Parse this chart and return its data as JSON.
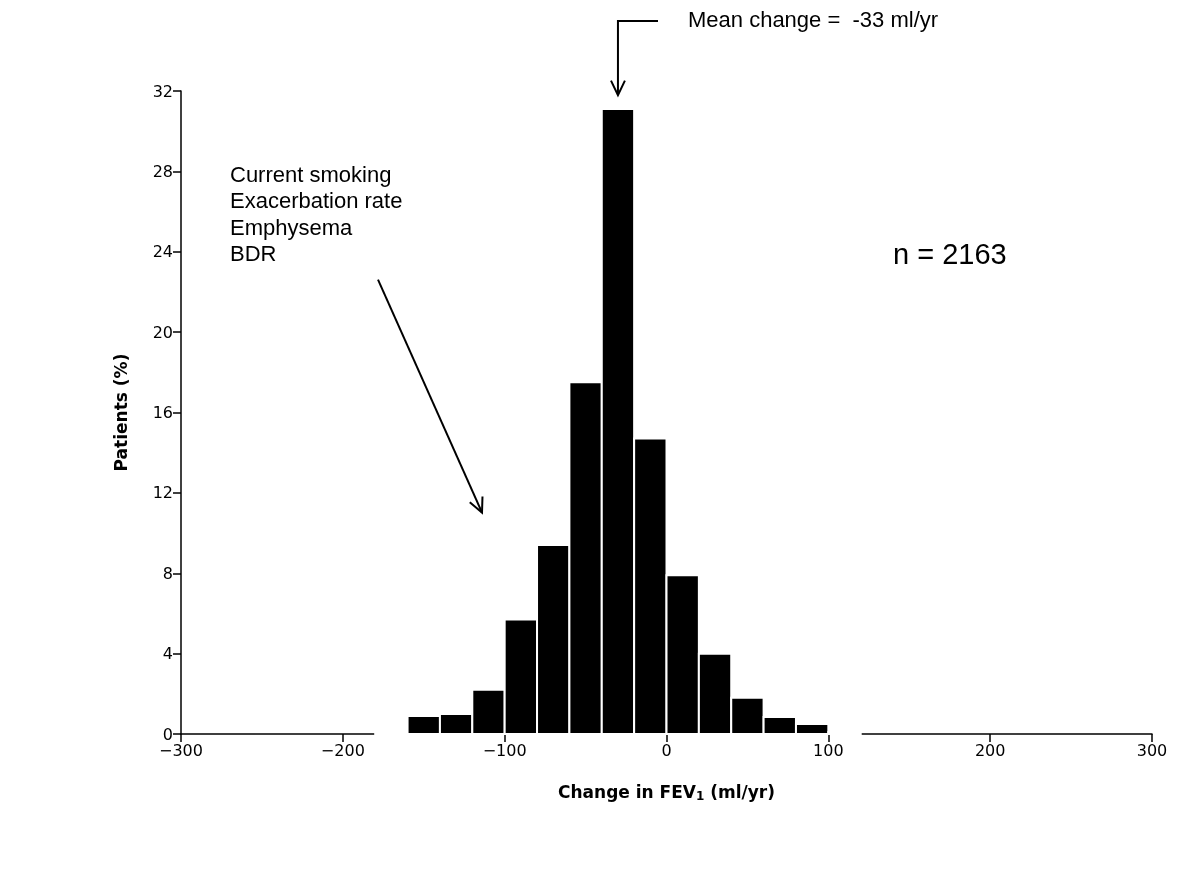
{
  "chart_data": {
    "type": "histogram",
    "bins": [
      -180,
      -160,
      -140,
      -120,
      -100,
      -80,
      -60,
      -40,
      -20,
      0,
      20,
      40,
      60,
      80,
      100,
      120
    ],
    "values": [
      0.1,
      0.9,
      1.0,
      2.2,
      5.7,
      9.4,
      17.5,
      31.1,
      14.7,
      7.9,
      4.0,
      1.8,
      0.85,
      0.5,
      0.1
    ],
    "color": "#000000",
    "xlabel": "Change in FEV$_{1}$ (ml/yr)",
    "ylabel": "Patients (%)",
    "xlim": [
      -300,
      300
    ],
    "xticks": [
      -300,
      -200,
      -100,
      0,
      100,
      200,
      300
    ],
    "ylim": [
      0,
      32
    ],
    "yticks": [
      0,
      4,
      8,
      12,
      16,
      20,
      24,
      28,
      32
    ],
    "grid": false,
    "annotations": [
      "Mean change =  -33 ml/yr",
      "Current smoking\nExacerbation rate\nEmphysema\nBDR",
      "n = 2163"
    ]
  }
}
